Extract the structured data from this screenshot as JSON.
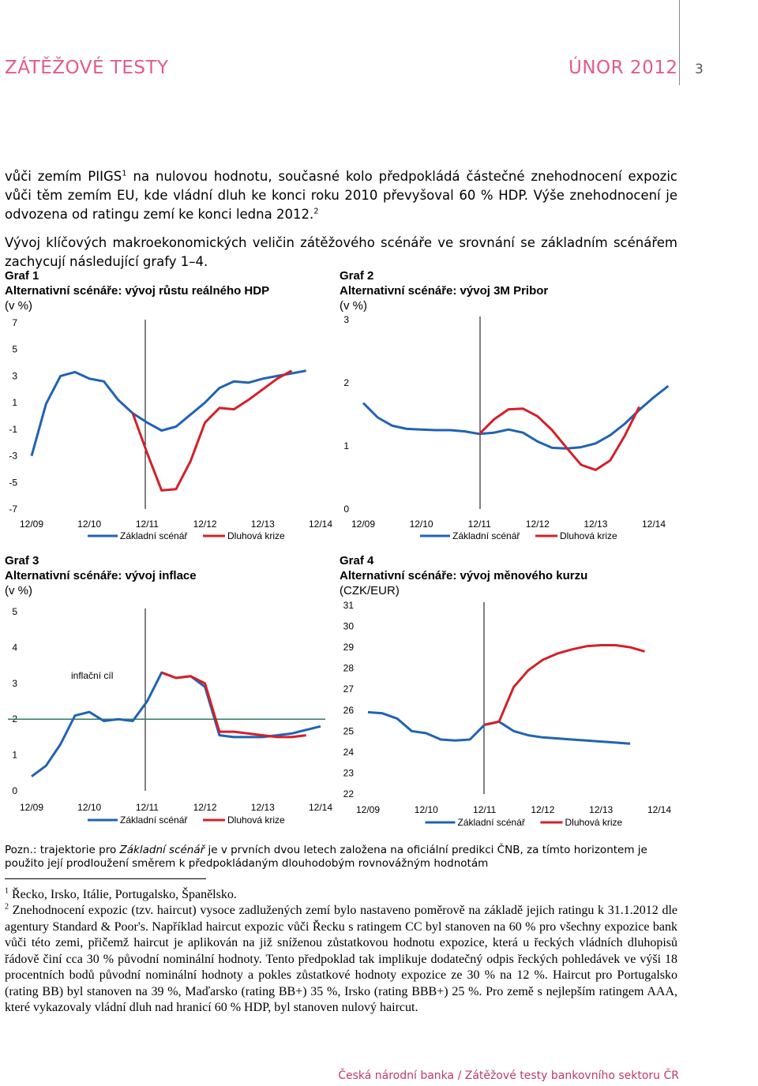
{
  "header": {
    "left": "ZÁTĚŽOVÉ TESTY",
    "right": "ÚNOR 2012",
    "page": "3"
  },
  "text": {
    "p1a": "vůči zemím PIIGS",
    "p1_sup": "1",
    "p1b": " na nulovou hodnotu, současné kolo předpokládá částečné znehodnocení expozic vůči těm zemím EU, kde vládní dluh ke konci roku 2010 převyšoval 60 % HDP. Výše znehodnocení je odvozena od ratingu zemí ke konci ledna 2012.",
    "p1_sup2": "2",
    "p2": "Vývoj klíčových makroekonomických veličin zátěžového scénáře ve srovnání se základním scénářem zachycují následující grafy 1–4."
  },
  "legend": {
    "base": "Základní scénář",
    "debt": "Dluhová krize"
  },
  "colors": {
    "base": "#1f63b5",
    "debt": "#d42028",
    "target": "#2e7d5b"
  },
  "chart_data": [
    {
      "type": "line",
      "graf": "Graf 1",
      "title": "Alternativní scénáře: vývoj růstu reálného HDP",
      "unit": "(v %)",
      "ylim": [
        -7,
        7
      ],
      "yticks": [
        "7",
        "5",
        "3",
        "1",
        "-1",
        "-3",
        "-5",
        "-7"
      ],
      "xticks": [
        "12/09",
        "12/10",
        "12/11",
        "12/12",
        "12/13",
        "12/14"
      ],
      "series": [
        {
          "name": "Základní scénář",
          "values": [
            -3.0,
            0.9,
            3.0,
            3.3,
            2.8,
            2.6,
            1.2,
            0.2,
            -0.5,
            -1.1,
            -0.8,
            0.1,
            1.0,
            2.1,
            2.6,
            2.5,
            2.8,
            3.0,
            3.2,
            3.4
          ]
        },
        {
          "name": "Dluhová krize",
          "values": [
            null,
            null,
            null,
            null,
            null,
            null,
            null,
            0.2,
            -2.8,
            -5.6,
            -5.5,
            -3.4,
            -0.5,
            0.6,
            0.5,
            1.2,
            2.0,
            2.8,
            3.4
          ]
        }
      ]
    },
    {
      "type": "line",
      "graf": "Graf 2",
      "title": "Alternativní scénáře: vývoj 3M Pribor",
      "unit": "(v %)",
      "ylim": [
        0,
        3
      ],
      "yticks": [
        "3",
        "2",
        "1",
        "0"
      ],
      "xticks": [
        "12/09",
        "12/10",
        "12/11",
        "12/12",
        "12/13",
        "12/14"
      ],
      "series": [
        {
          "name": "Základní scénář",
          "values": [
            1.68,
            1.45,
            1.32,
            1.27,
            1.26,
            1.25,
            1.25,
            1.23,
            1.19,
            1.21,
            1.26,
            1.21,
            1.07,
            0.97,
            0.96,
            0.98,
            1.04,
            1.17,
            1.35,
            1.57,
            1.77,
            1.95
          ]
        },
        {
          "name": "Dluhová krize",
          "values": [
            null,
            null,
            null,
            null,
            null,
            null,
            null,
            null,
            1.19,
            1.42,
            1.58,
            1.59,
            1.47,
            1.25,
            0.97,
            0.7,
            0.62,
            0.77,
            1.16,
            1.62
          ]
        }
      ]
    },
    {
      "type": "line",
      "graf": "Graf 3",
      "title": "Alternativní scénáře: vývoj inflace",
      "unit": "(v %)",
      "ylim": [
        0,
        5
      ],
      "yticks": [
        "5",
        "4",
        "3",
        "2",
        "1",
        "0"
      ],
      "xticks": [
        "12/09",
        "12/10",
        "12/11",
        "12/12",
        "12/13",
        "12/14"
      ],
      "annotation": "inflační cíl",
      "target": 2.0,
      "series": [
        {
          "name": "Základní scénář",
          "values": [
            0.4,
            0.7,
            1.3,
            2.1,
            2.2,
            1.95,
            2.0,
            1.95,
            2.5,
            3.3,
            3.15,
            3.2,
            2.9,
            1.55,
            1.5,
            1.5,
            1.5,
            1.55,
            1.6,
            1.7,
            1.8
          ]
        },
        {
          "name": "Dluhová krize",
          "values": [
            null,
            null,
            null,
            null,
            null,
            null,
            null,
            null,
            null,
            3.3,
            3.15,
            3.2,
            3.0,
            1.65,
            1.65,
            1.6,
            1.55,
            1.5,
            1.5,
            1.55
          ]
        }
      ]
    },
    {
      "type": "line",
      "graf": "Graf 4",
      "title": "Alternativní scénáře: vývoj měnového kurzu",
      "unit": "(CZK/EUR)",
      "ylim": [
        22,
        31
      ],
      "yticks": [
        "31",
        "30",
        "29",
        "28",
        "27",
        "26",
        "25",
        "24",
        "23",
        "22"
      ],
      "xticks": [
        "12/09",
        "12/10",
        "12/11",
        "12/12",
        "12/13",
        "12/14"
      ],
      "series": [
        {
          "name": "Základní scénář",
          "values": [
            25.9,
            25.85,
            25.6,
            25.0,
            24.9,
            24.6,
            24.55,
            24.6,
            25.3,
            25.45,
            25.0,
            24.8,
            24.7,
            24.65,
            24.6,
            24.55,
            24.5,
            24.45,
            24.4
          ]
        },
        {
          "name": "Dluhová krize",
          "values": [
            null,
            null,
            null,
            null,
            null,
            null,
            null,
            null,
            25.3,
            25.45,
            27.1,
            27.9,
            28.4,
            28.7,
            28.9,
            29.05,
            29.1,
            29.1,
            29.0,
            28.8
          ]
        }
      ]
    }
  ],
  "note": {
    "prefix": "Pozn.: trajektorie pro ",
    "em": "Základní scénář",
    "rest": " je v prvních dvou letech založena na oficiální predikci ČNB, za tímto horizontem je použito její prodloužení směrem k předpokládaným dlouhodobým rovnovážným hodnotám"
  },
  "footnotes": {
    "f1_num": "1",
    "f1": " Řecko, Irsko, Itálie, Portugalsko, Španělsko.",
    "f2_num": "2",
    "f2": " Znehodnocení expozic (tzv. haircut) vysoce zadlužených zemí bylo nastaveno poměrově na základě jejich ratingu k 31.1.2012 dle agentury Standard & Poor's. Například haircut  expozic vůči Řecku s ratingem CC byl stanoven na 60 % pro všechny expozice bank vůči této zemi, přičemž haircut je aplikován na již sníženou zůstatkovou hodnotu expozice, která u řeckých vládních dluhopisů řádově činí cca 30 % původní nominální hodnoty. Tento předpoklad tak implikuje dodatečný odpis řeckých pohledávek ve výši 18 procentních bodů původní nominální hodnoty a pokles zůstatkové hodnoty expozice ze 30 % na 12 %. Haircut pro Portugalsko (rating BB) byl stanoven na 39 %, Maďarsko (rating BB+) 35 %, Irsko (rating BBB+) 25 %. Pro země s nejlepším ratingem AAA, které vykazovaly vládní dluh nad hranicí 60 % HDP, byl stanoven nulový haircut."
  },
  "footer": "Česká národní banka / Zátěžové testy bankovního sektoru ČR"
}
